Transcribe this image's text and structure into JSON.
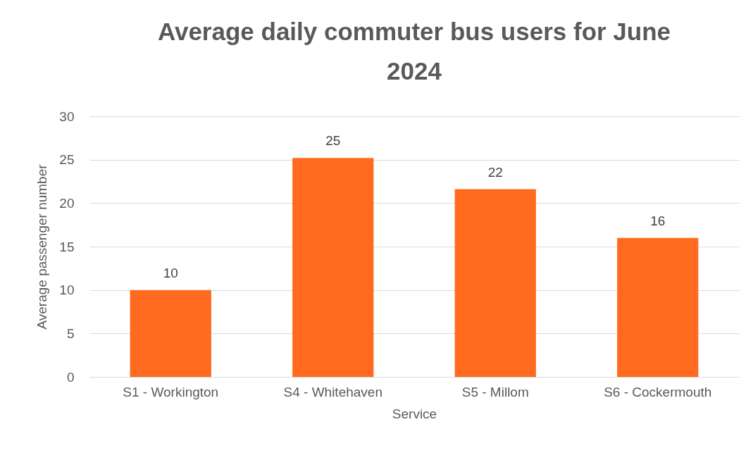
{
  "chart_data": {
    "type": "bar",
    "title": "Average daily commuter bus users for June 2024",
    "xlabel": "Service",
    "ylabel": "Average passenger number",
    "categories": [
      "S1 - Workington",
      "S4 - Whitehaven",
      "S5 - Millom",
      "S6 - Cockermouth"
    ],
    "values": [
      10,
      25.2,
      21.6,
      16
    ],
    "value_labels": [
      "10",
      "25",
      "22",
      "16"
    ],
    "color": "#ff6a1f",
    "ylim": [
      0,
      30
    ],
    "yticks": [
      0,
      5,
      10,
      15,
      20,
      25,
      30
    ],
    "grid": "y"
  }
}
